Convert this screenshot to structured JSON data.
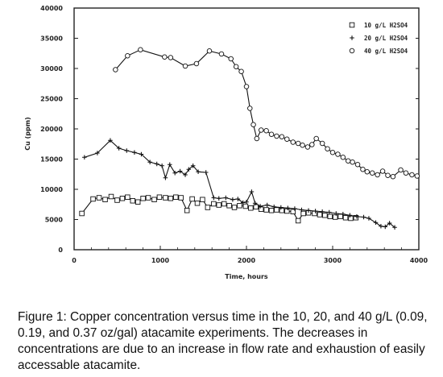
{
  "chart_data": {
    "type": "line",
    "xlabel": "Time, hours",
    "ylabel": "Cu (ppm)",
    "xlim": [
      0,
      4000
    ],
    "ylim": [
      0,
      40000
    ],
    "x_ticks": [
      "0",
      "1000",
      "2000",
      "3000",
      "4000"
    ],
    "y_ticks": [
      "0",
      "5000",
      "10000",
      "15000",
      "20000",
      "25000",
      "30000",
      "35000",
      "40000"
    ],
    "grid": false,
    "legend_position": "top-right",
    "series": [
      {
        "name": "10 g/L H2SO4",
        "marker": "square",
        "x": [
          90,
          220,
          290,
          360,
          430,
          500,
          560,
          620,
          680,
          740,
          800,
          860,
          930,
          990,
          1060,
          1120,
          1180,
          1240,
          1310,
          1370,
          1430,
          1490,
          1550,
          1620,
          1680,
          1740,
          1800,
          1860,
          1920,
          1990,
          2050,
          2110,
          2170,
          2230,
          2290,
          2350,
          2410,
          2470,
          2540,
          2600,
          2660,
          2720,
          2790,
          2850,
          2910,
          2970,
          3030,
          3090,
          3150,
          3210,
          3270
        ],
        "y": [
          6000,
          8400,
          8600,
          8300,
          8800,
          8200,
          8500,
          8700,
          8100,
          7900,
          8500,
          8600,
          8300,
          8700,
          8600,
          8500,
          8700,
          8600,
          6500,
          8400,
          7700,
          8300,
          7000,
          7600,
          7400,
          7600,
          7300,
          7000,
          7300,
          7200,
          6900,
          7100,
          6700,
          6600,
          6500,
          6600,
          6500,
          6400,
          6300,
          4800,
          6000,
          6100,
          6000,
          5800,
          5700,
          5500,
          5400,
          5500,
          5300,
          5200,
          5300
        ]
      },
      {
        "name": "20 g/L H2SO4",
        "marker": "plus",
        "x": [
          120,
          270,
          420,
          520,
          610,
          700,
          780,
          880,
          960,
          1020,
          1060,
          1110,
          1170,
          1230,
          1290,
          1330,
          1380,
          1440,
          1530,
          1620,
          1680,
          1760,
          1840,
          1900,
          1960,
          2000,
          2060,
          2100,
          2160,
          2240,
          2320,
          2400,
          2480,
          2560,
          2640,
          2720,
          2800,
          2880,
          2960,
          3040,
          3120,
          3200,
          3280,
          3360,
          3420,
          3500,
          3560,
          3610,
          3660,
          3720
        ],
        "y": [
          15300,
          16000,
          18100,
          16800,
          16400,
          16100,
          15800,
          14500,
          14200,
          13900,
          11900,
          14100,
          12700,
          13000,
          12400,
          13300,
          13900,
          12900,
          12800,
          8600,
          8500,
          8600,
          8300,
          8400,
          7800,
          7900,
          9600,
          7700,
          7200,
          7400,
          7100,
          7000,
          6900,
          6800,
          6600,
          6500,
          6400,
          6300,
          6200,
          6000,
          5900,
          5700,
          5500,
          5400,
          5200,
          4500,
          3900,
          3800,
          4400,
          3700
        ]
      },
      {
        "name": "40 g/L H2SO4",
        "marker": "circle",
        "x": [
          480,
          620,
          770,
          1050,
          1120,
          1290,
          1420,
          1570,
          1710,
          1820,
          1880,
          1940,
          2000,
          2040,
          2080,
          2120,
          2170,
          2230,
          2290,
          2350,
          2410,
          2470,
          2540,
          2600,
          2650,
          2710,
          2760,
          2810,
          2880,
          2940,
          3000,
          3060,
          3120,
          3180,
          3230,
          3290,
          3350,
          3400,
          3460,
          3520,
          3580,
          3640,
          3700,
          3790,
          3850,
          3920,
          3980
        ],
        "y": [
          29800,
          32100,
          33100,
          31900,
          31800,
          30400,
          30800,
          32900,
          32400,
          31600,
          30300,
          29500,
          27000,
          23400,
          20700,
          18400,
          19800,
          19700,
          19100,
          18800,
          18700,
          18300,
          17800,
          17600,
          17300,
          17000,
          17400,
          18400,
          17600,
          16700,
          16100,
          15800,
          15300,
          14700,
          14500,
          14100,
          13300,
          12900,
          12700,
          12400,
          13000,
          12300,
          12100,
          13200,
          12700,
          12400,
          12200
        ]
      }
    ]
  },
  "caption": "Figure 1: Copper concentration versus time in the 10, 20, and 40 g/L (0.09, 0.19, and 0.37 oz/gal) atacamite experiments. The decreases in concentrations are due to an increase in flow rate and exhaustion of easily accessable atacamite."
}
